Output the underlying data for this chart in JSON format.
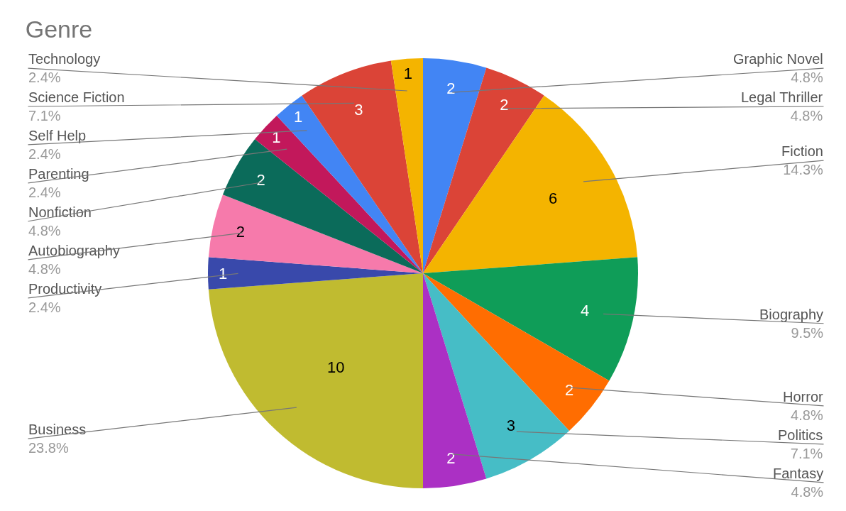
{
  "chart_data": {
    "type": "pie",
    "title": "Genre",
    "categories": [
      "Graphic Novel",
      "Legal Thriller",
      "Fiction",
      "Biography",
      "Horror",
      "Politics",
      "Fantasy",
      "Business",
      "Productivity",
      "Autobiography",
      "Nonfiction",
      "Parenting",
      "Self Help",
      "Science Fiction",
      "Technology"
    ],
    "values": [
      2,
      2,
      6,
      4,
      2,
      3,
      2,
      10,
      1,
      2,
      2,
      1,
      1,
      3,
      1
    ],
    "annotations": [
      "4.8%",
      "4.8%",
      "14.3%",
      "9.5%",
      "4.8%",
      "7.1%",
      "4.8%",
      "23.8%",
      "2.4%",
      "4.8%",
      "4.8%",
      "2.4%",
      "2.4%",
      "7.1%",
      "2.4%"
    ],
    "colors": [
      "#4285f4",
      "#db4437",
      "#f4b400",
      "#0f9d58",
      "#ff6d01",
      "#46bdc6",
      "#ab30c4",
      "#c0bb30",
      "#3949ab",
      "#f67aab",
      "#0b6b5a",
      "#c2185b",
      "#4285f4",
      "#db4437",
      "#f4b400"
    ],
    "data_labels": true,
    "legend": false
  }
}
